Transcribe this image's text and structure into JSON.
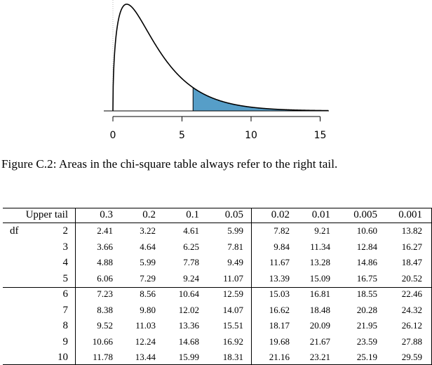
{
  "figure": {
    "x_ticks": [
      "0",
      "5",
      "10",
      "15"
    ],
    "df": 3,
    "shade_from": 5.8,
    "x_range": [
      0,
      15.6
    ],
    "curve_color": "#000000",
    "shade_color": "#569ec8"
  },
  "caption": "Figure C.2: Areas in the chi-square table always refer to the right tail.",
  "table": {
    "corner_label": "Upper tail",
    "row_header_label": "df",
    "tails": [
      "0.3",
      "0.2",
      "0.1",
      "0.05",
      "0.02",
      "0.01",
      "0.005",
      "0.001"
    ],
    "rows": [
      {
        "df": "2",
        "values": [
          "2.41",
          "3.22",
          "4.61",
          "5.99",
          "7.82",
          "9.21",
          "10.60",
          "13.82"
        ]
      },
      {
        "df": "3",
        "values": [
          "3.66",
          "4.64",
          "6.25",
          "7.81",
          "9.84",
          "11.34",
          "12.84",
          "16.27"
        ]
      },
      {
        "df": "4",
        "values": [
          "4.88",
          "5.99",
          "7.78",
          "9.49",
          "11.67",
          "13.28",
          "14.86",
          "18.47"
        ]
      },
      {
        "df": "5",
        "values": [
          "6.06",
          "7.29",
          "9.24",
          "11.07",
          "13.39",
          "15.09",
          "16.75",
          "20.52"
        ]
      },
      {
        "df": "6",
        "values": [
          "7.23",
          "8.56",
          "10.64",
          "12.59",
          "15.03",
          "16.81",
          "18.55",
          "22.46"
        ]
      },
      {
        "df": "7",
        "values": [
          "8.38",
          "9.80",
          "12.02",
          "14.07",
          "16.62",
          "18.48",
          "20.28",
          "24.32"
        ]
      },
      {
        "df": "8",
        "values": [
          "9.52",
          "11.03",
          "13.36",
          "15.51",
          "18.17",
          "20.09",
          "21.95",
          "26.12"
        ]
      },
      {
        "df": "9",
        "values": [
          "10.66",
          "12.24",
          "14.68",
          "16.92",
          "19.68",
          "21.67",
          "23.59",
          "27.88"
        ]
      },
      {
        "df": "10",
        "values": [
          "11.78",
          "13.44",
          "15.99",
          "18.31",
          "21.16",
          "23.21",
          "25.19",
          "29.59"
        ]
      }
    ]
  }
}
